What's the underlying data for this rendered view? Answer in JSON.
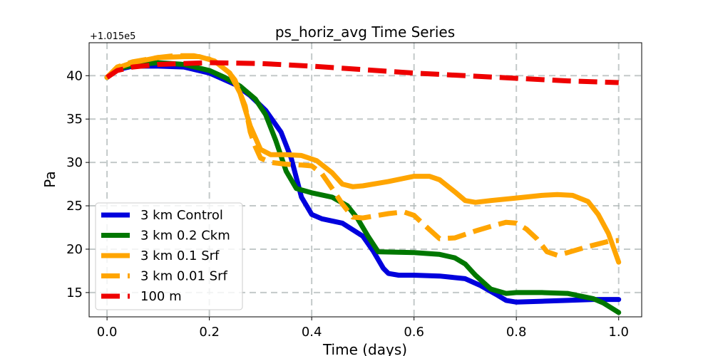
{
  "chart_data": {
    "type": "line",
    "title": "ps_horiz_avg Time Series",
    "xlabel": "Time (days)",
    "ylabel": "Pa",
    "offset_text": "+1.015e5",
    "xlim": [
      -0.035,
      1.045
    ],
    "ylim": [
      12.2,
      43.8
    ],
    "xticks": [
      0.0,
      0.2,
      0.4,
      0.6,
      0.8,
      1.0
    ],
    "xtick_labels": [
      "0.0",
      "0.2",
      "0.4",
      "0.6",
      "0.8",
      "1.0"
    ],
    "yticks": [
      15,
      20,
      25,
      30,
      35,
      40
    ],
    "ytick_labels": [
      "15",
      "20",
      "25",
      "30",
      "35",
      "40"
    ],
    "grid": true,
    "legend_position": "lower-left",
    "series": [
      {
        "name": "3 km Control",
        "color": "#0000dd",
        "dashed": false,
        "x": [
          0.0,
          0.02,
          0.05,
          0.1,
          0.15,
          0.2,
          0.25,
          0.28,
          0.31,
          0.34,
          0.36,
          0.38,
          0.4,
          0.42,
          0.46,
          0.5,
          0.52,
          0.54,
          0.55,
          0.57,
          0.6,
          0.65,
          0.7,
          0.73,
          0.76,
          0.78,
          0.8,
          0.85,
          0.9,
          0.95,
          1.0
        ],
        "y": [
          39.8,
          40.7,
          41.1,
          41.1,
          41.0,
          40.3,
          39.0,
          37.7,
          36.0,
          33.5,
          30.5,
          26.0,
          24.0,
          23.5,
          23.0,
          21.5,
          19.8,
          17.8,
          17.2,
          17.0,
          17.0,
          16.9,
          16.6,
          15.8,
          14.8,
          14.1,
          13.9,
          14.0,
          14.1,
          14.2,
          14.2
        ]
      },
      {
        "name": "3 km 0.2 Ckm",
        "color": "#007700",
        "dashed": false,
        "x": [
          0.0,
          0.02,
          0.05,
          0.1,
          0.15,
          0.2,
          0.23,
          0.26,
          0.29,
          0.31,
          0.33,
          0.35,
          0.37,
          0.4,
          0.44,
          0.47,
          0.49,
          0.51,
          0.53,
          0.6,
          0.65,
          0.68,
          0.7,
          0.72,
          0.75,
          0.78,
          0.8,
          0.85,
          0.9,
          0.95,
          0.97,
          1.0
        ],
        "y": [
          39.8,
          40.8,
          41.2,
          41.5,
          41.3,
          40.6,
          39.8,
          38.8,
          37.3,
          35.5,
          32.5,
          29.0,
          27.0,
          26.5,
          26.0,
          25.0,
          23.5,
          21.5,
          19.7,
          19.6,
          19.4,
          19.0,
          18.3,
          17.0,
          15.4,
          14.9,
          15.0,
          15.0,
          14.9,
          14.3,
          13.8,
          12.7
        ]
      },
      {
        "name": "3 km 0.1 Srf",
        "color": "#ffa500",
        "dashed": false,
        "x": [
          0.0,
          0.02,
          0.05,
          0.1,
          0.15,
          0.18,
          0.21,
          0.24,
          0.26,
          0.28,
          0.3,
          0.32,
          0.35,
          0.38,
          0.41,
          0.44,
          0.46,
          0.48,
          0.5,
          0.55,
          0.6,
          0.63,
          0.65,
          0.68,
          0.7,
          0.72,
          0.75,
          0.8,
          0.85,
          0.88,
          0.91,
          0.94,
          0.96,
          0.98,
          1.0
        ],
        "y": [
          39.8,
          40.9,
          41.5,
          42.1,
          42.2,
          42.2,
          41.7,
          40.3,
          38.0,
          34.2,
          31.5,
          30.9,
          30.9,
          30.8,
          30.2,
          28.8,
          27.5,
          27.2,
          27.3,
          27.8,
          28.4,
          28.4,
          28.0,
          26.6,
          25.6,
          25.4,
          25.6,
          25.9,
          26.2,
          26.3,
          26.2,
          25.5,
          24.0,
          21.8,
          18.5
        ]
      },
      {
        "name": "3 km 0.01 Srf",
        "color": "#ffa500",
        "dashed": true,
        "x": [
          0.0,
          0.02,
          0.05,
          0.1,
          0.13,
          0.17,
          0.2,
          0.23,
          0.25,
          0.27,
          0.28,
          0.29,
          0.3,
          0.32,
          0.35,
          0.38,
          0.4,
          0.42,
          0.44,
          0.46,
          0.48,
          0.5,
          0.55,
          0.58,
          0.6,
          0.62,
          0.65,
          0.68,
          0.72,
          0.76,
          0.78,
          0.8,
          0.82,
          0.84,
          0.86,
          0.88,
          0.9,
          0.94,
          0.98,
          1.0
        ],
        "y": [
          39.8,
          41.0,
          41.6,
          42.1,
          42.3,
          42.3,
          41.9,
          41.0,
          39.5,
          36.5,
          33.5,
          31.8,
          30.5,
          30.0,
          29.8,
          29.7,
          29.6,
          28.7,
          27.0,
          25.2,
          23.7,
          23.6,
          24.1,
          24.3,
          23.9,
          22.8,
          21.2,
          21.3,
          22.1,
          22.8,
          23.1,
          23.0,
          22.3,
          21.2,
          19.7,
          19.3,
          19.6,
          20.3,
          20.9,
          21.0
        ]
      },
      {
        "name": "100 m",
        "color": "#ee0000",
        "dashed": true,
        "x": [
          0.0,
          0.02,
          0.05,
          0.1,
          0.15,
          0.2,
          0.3,
          0.4,
          0.5,
          0.6,
          0.7,
          0.8,
          0.9,
          1.0
        ],
        "y": [
          39.8,
          40.6,
          41.0,
          41.3,
          41.4,
          41.5,
          41.4,
          41.1,
          40.7,
          40.3,
          40.0,
          39.7,
          39.4,
          39.2
        ]
      }
    ]
  }
}
